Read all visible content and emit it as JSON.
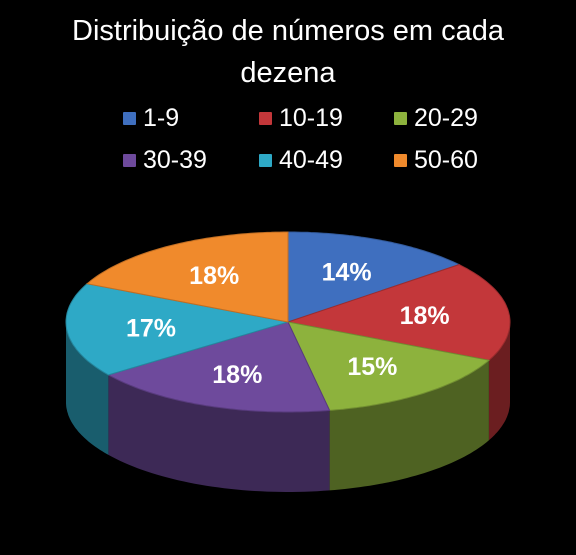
{
  "chart_data": {
    "type": "pie",
    "title": "Distribuição de números em cada dezena",
    "categories": [
      "1-9",
      "10-19",
      "20-29",
      "30-39",
      "40-49",
      "50-60"
    ],
    "values": [
      14,
      18,
      15,
      18,
      17,
      18
    ],
    "labels": [
      "14%",
      "18%",
      "15%",
      "18%",
      "17%",
      "18%"
    ],
    "colors": [
      "#3f6fbf",
      "#c3373a",
      "#8db23d",
      "#6e4a9c",
      "#2ea9c6",
      "#f08a2c"
    ],
    "legend_position": "top",
    "style": "3d"
  }
}
